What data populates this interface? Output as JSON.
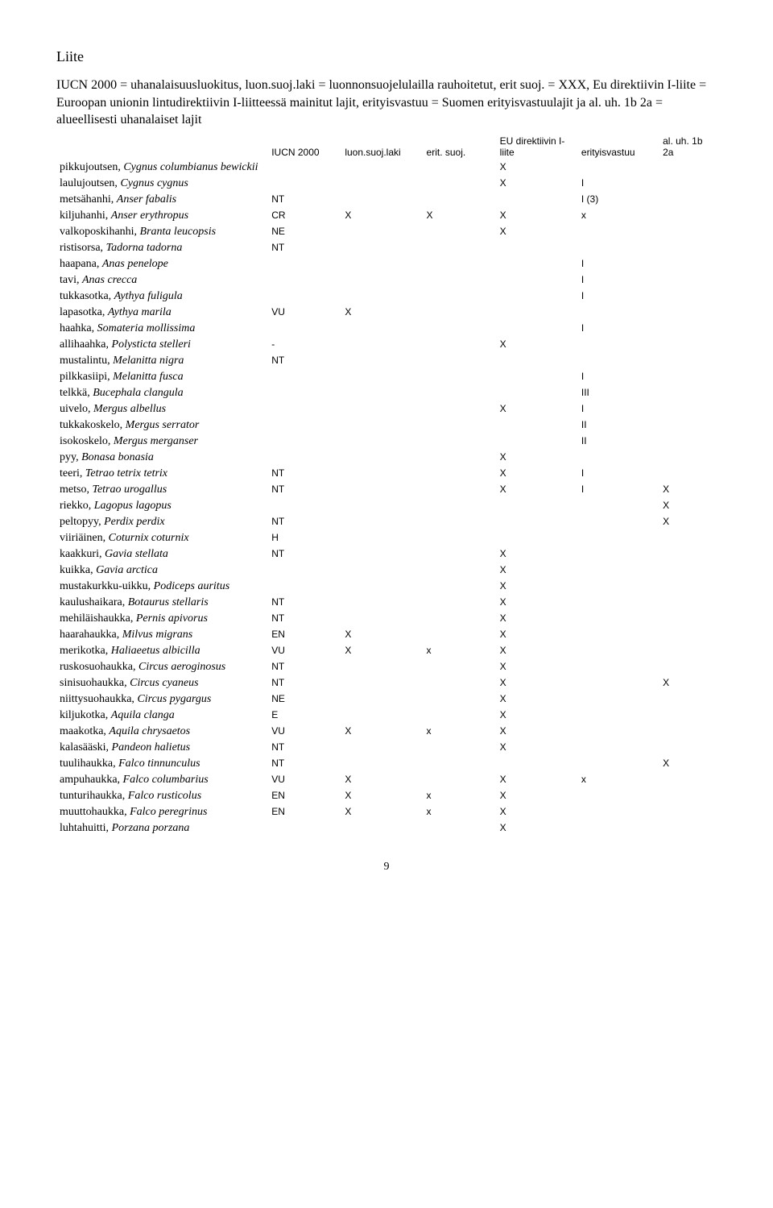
{
  "title": "Liite",
  "intro_lines": [
    "IUCN 2000 = uhanalaisuusluokitus, luon.suoj.laki = luonnonsuojelulailla rauhoitetut, erit suoj. = XXX, Eu direktiivin I-liite = Euroopan unionin lintudirektiivin I-liitteessä mainitut lajit, erityisvastuu = Suomen erityisvastuulajit ja al. uh. 1b 2a = alueellisesti uhanalaiset lajit"
  ],
  "columns": [
    "",
    "IUCN 2000",
    "luon.suoj.laki",
    "erit. suoj.",
    "EU direktiivin I-liite",
    "erityisvastuu",
    "al. uh. 1b 2a"
  ],
  "rows": [
    {
      "fi": "pikkujoutsen",
      "sci": "Cygnus columbianus bewickii",
      "iucn": "",
      "laki": "",
      "erit": "",
      "eu": "X",
      "ev": "",
      "uh": ""
    },
    {
      "fi": "laulujoutsen",
      "sci": "Cygnus cygnus",
      "iucn": "",
      "laki": "",
      "erit": "",
      "eu": "X",
      "ev": "I",
      "uh": ""
    },
    {
      "fi": "metsähanhi",
      "sci": "Anser fabalis",
      "iucn": "NT",
      "laki": "",
      "erit": "",
      "eu": "",
      "ev": "I (3)",
      "uh": ""
    },
    {
      "fi": "kiljuhanhi",
      "sci": "Anser erythropus",
      "iucn": "CR",
      "laki": "X",
      "erit": "X",
      "eu": "X",
      "ev": "x",
      "uh": ""
    },
    {
      "fi": "valkoposkihanhi",
      "sci": "Branta leucopsis",
      "iucn": "NE",
      "laki": "",
      "erit": "",
      "eu": "X",
      "ev": "",
      "uh": ""
    },
    {
      "fi": "ristisorsa",
      "sci": "Tadorna tadorna",
      "iucn": "NT",
      "laki": "",
      "erit": "",
      "eu": "",
      "ev": "",
      "uh": ""
    },
    {
      "fi": "haapana",
      "sci": "Anas penelope",
      "iucn": "",
      "laki": "",
      "erit": "",
      "eu": "",
      "ev": "I",
      "uh": ""
    },
    {
      "fi": "tavi",
      "sci": "Anas crecca",
      "iucn": "",
      "laki": "",
      "erit": "",
      "eu": "",
      "ev": "I",
      "uh": ""
    },
    {
      "fi": "tukkasotka",
      "sci": "Aythya fuligula",
      "iucn": "",
      "laki": "",
      "erit": "",
      "eu": "",
      "ev": "I",
      "uh": ""
    },
    {
      "fi": "lapasotka",
      "sci": "Aythya marila",
      "iucn": "VU",
      "laki": "X",
      "erit": "",
      "eu": "",
      "ev": "",
      "uh": ""
    },
    {
      "fi": "haahka",
      "sci": "Somateria mollissima",
      "iucn": "",
      "laki": "",
      "erit": "",
      "eu": "",
      "ev": "I",
      "uh": ""
    },
    {
      "fi": "allihaahka",
      "sci": "Polysticta stelleri",
      "iucn": "-",
      "laki": "",
      "erit": "",
      "eu": "X",
      "ev": "",
      "uh": ""
    },
    {
      "fi": "mustalintu",
      "sci": "Melanitta nigra",
      "iucn": "NT",
      "laki": "",
      "erit": "",
      "eu": "",
      "ev": "",
      "uh": ""
    },
    {
      "fi": "pilkkasiipi",
      "sci": "Melanitta fusca",
      "iucn": "",
      "laki": "",
      "erit": "",
      "eu": "",
      "ev": "I",
      "uh": ""
    },
    {
      "fi": "telkkä",
      "sci": "Bucephala clangula",
      "iucn": "",
      "laki": "",
      "erit": "",
      "eu": "",
      "ev": "III",
      "uh": ""
    },
    {
      "fi": "uivelo",
      "sci": "Mergus albellus",
      "iucn": "",
      "laki": "",
      "erit": "",
      "eu": "X",
      "ev": "I",
      "uh": ""
    },
    {
      "fi": "tukkakoskelo",
      "sci": "Mergus serrator",
      "iucn": "",
      "laki": "",
      "erit": "",
      "eu": "",
      "ev": "II",
      "uh": ""
    },
    {
      "fi": "isokoskelo",
      "sci": "Mergus merganser",
      "iucn": "",
      "laki": "",
      "erit": "",
      "eu": "",
      "ev": "II",
      "uh": ""
    },
    {
      "fi": "pyy",
      "sci": "Bonasa bonasia",
      "iucn": "",
      "laki": "",
      "erit": "",
      "eu": "X",
      "ev": "",
      "uh": ""
    },
    {
      "fi": "teeri",
      "sci": "Tetrao tetrix tetrix",
      "iucn": "NT",
      "laki": "",
      "erit": "",
      "eu": "X",
      "ev": "I",
      "uh": ""
    },
    {
      "fi": "metso",
      "sci": "Tetrao urogallus",
      "iucn": "NT",
      "laki": "",
      "erit": "",
      "eu": "X",
      "ev": "I",
      "uh": "X"
    },
    {
      "fi": "riekko",
      "sci": "Lagopus lagopus",
      "iucn": "",
      "laki": "",
      "erit": "",
      "eu": "",
      "ev": "",
      "uh": "X"
    },
    {
      "fi": "peltopyy",
      "sci": "Perdix perdix",
      "iucn": "NT",
      "laki": "",
      "erit": "",
      "eu": "",
      "ev": "",
      "uh": "X"
    },
    {
      "fi": "viiriäinen",
      "sci": "Coturnix coturnix",
      "iucn": "H",
      "laki": "",
      "erit": "",
      "eu": "",
      "ev": "",
      "uh": ""
    },
    {
      "fi": "kaakkuri",
      "sci": "Gavia stellata",
      "iucn": "NT",
      "laki": "",
      "erit": "",
      "eu": "X",
      "ev": "",
      "uh": ""
    },
    {
      "fi": "kuikka",
      "sci": "Gavia arctica",
      "iucn": "",
      "laki": "",
      "erit": "",
      "eu": "X",
      "ev": "",
      "uh": ""
    },
    {
      "fi": "mustakurkku-uikku",
      "sci": "Podiceps auritus",
      "iucn": "",
      "laki": "",
      "erit": "",
      "eu": "X",
      "ev": "",
      "uh": ""
    },
    {
      "fi": "kaulushaikara",
      "sci": "Botaurus stellaris",
      "iucn": "NT",
      "laki": "",
      "erit": "",
      "eu": "X",
      "ev": "",
      "uh": ""
    },
    {
      "fi": "mehiläishaukka",
      "sci": "Pernis apivorus",
      "iucn": "NT",
      "laki": "",
      "erit": "",
      "eu": "X",
      "ev": "",
      "uh": ""
    },
    {
      "fi": "haarahaukka",
      "sci": "Milvus migrans",
      "iucn": "EN",
      "laki": "X",
      "erit": "",
      "eu": "X",
      "ev": "",
      "uh": ""
    },
    {
      "fi": "merikotka",
      "sci": "Haliaeetus albicilla",
      "iucn": "VU",
      "laki": "X",
      "erit": "x",
      "eu": "X",
      "ev": "",
      "uh": ""
    },
    {
      "fi": "ruskosuohaukka",
      "sci": "Circus aeroginosus",
      "iucn": "NT",
      "laki": "",
      "erit": "",
      "eu": "X",
      "ev": "",
      "uh": ""
    },
    {
      "fi": "sinisuohaukka",
      "sci": "Circus cyaneus",
      "iucn": "NT",
      "laki": "",
      "erit": "",
      "eu": "X",
      "ev": "",
      "uh": "X"
    },
    {
      "fi": "niittysuohaukka",
      "sci": "Circus pygargus",
      "iucn": "NE",
      "laki": "",
      "erit": "",
      "eu": "X",
      "ev": "",
      "uh": ""
    },
    {
      "fi": "kiljukotka",
      "sci": "Aquila clanga",
      "iucn": "E",
      "laki": "",
      "erit": "",
      "eu": "X",
      "ev": "",
      "uh": ""
    },
    {
      "fi": "maakotka",
      "sci": "Aquila chrysaetos",
      "iucn": "VU",
      "laki": "X",
      "erit": "x",
      "eu": "X",
      "ev": "",
      "uh": ""
    },
    {
      "fi": "kalasääski",
      "sci": "Pandeon halietus",
      "iucn": "NT",
      "laki": "",
      "erit": "",
      "eu": "X",
      "ev": "",
      "uh": ""
    },
    {
      "fi": "tuulihaukka",
      "sci": "Falco tinnunculus",
      "iucn": "NT",
      "laki": "",
      "erit": "",
      "eu": "",
      "ev": "",
      "uh": "X"
    },
    {
      "fi": "ampuhaukka",
      "sci": "Falco columbarius",
      "iucn": "VU",
      "laki": "X",
      "erit": "",
      "eu": "X",
      "ev": "x",
      "uh": ""
    },
    {
      "fi": "tunturihaukka",
      "sci": "Falco rusticolus",
      "iucn": "EN",
      "laki": "X",
      "erit": "x",
      "eu": "X",
      "ev": "",
      "uh": ""
    },
    {
      "fi": "muuttohaukka",
      "sci": "Falco peregrinus",
      "iucn": "EN",
      "laki": "X",
      "erit": "x",
      "eu": "X",
      "ev": "",
      "uh": ""
    },
    {
      "fi": "luhtahuitti",
      "sci": "Porzana porzana",
      "iucn": "",
      "laki": "",
      "erit": "",
      "eu": "X",
      "ev": "",
      "uh": ""
    }
  ],
  "page_number": "9"
}
